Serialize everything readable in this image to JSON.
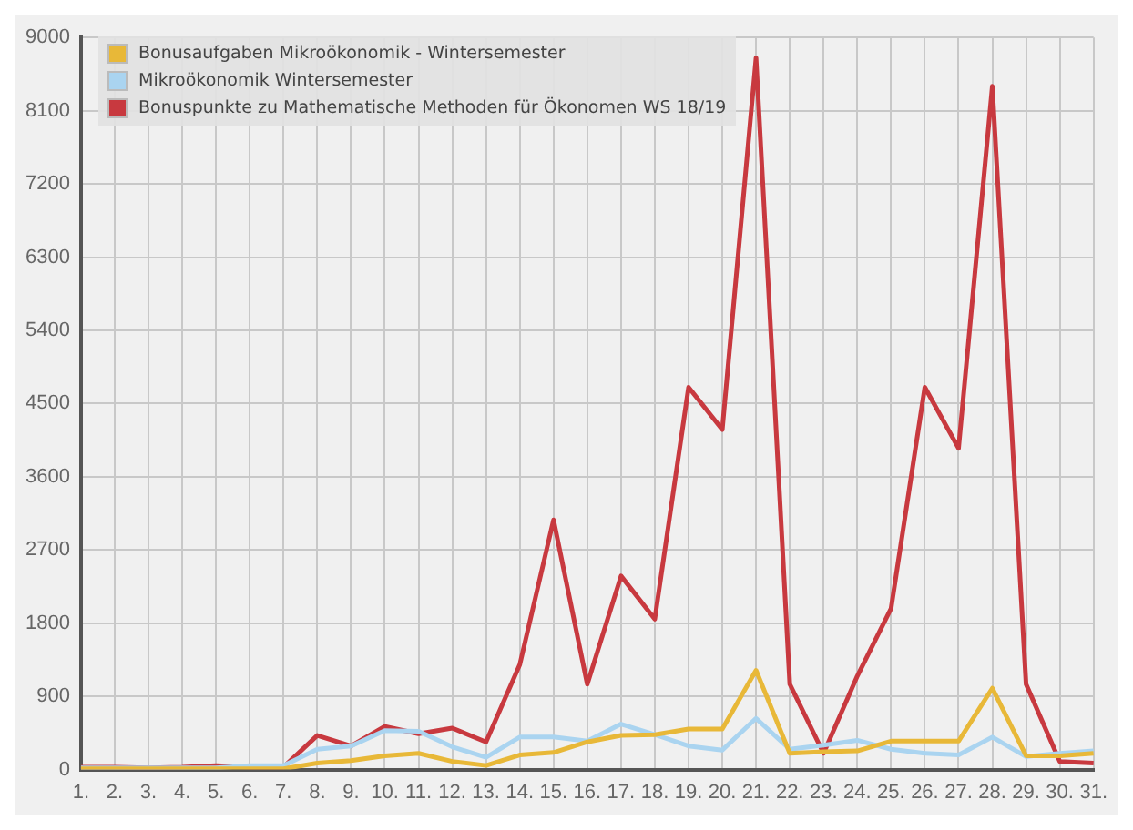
{
  "chart_data": {
    "type": "line",
    "categories": [
      "1.",
      "2.",
      "3.",
      "4.",
      "5.",
      "6.",
      "7.",
      "8.",
      "9.",
      "10.",
      "11.",
      "12.",
      "13.",
      "14.",
      "15.",
      "16.",
      "17.",
      "18.",
      "19.",
      "20.",
      "21.",
      "22.",
      "23.",
      "24.",
      "25.",
      "26.",
      "27.",
      "28.",
      "29.",
      "30.",
      "31."
    ],
    "series": [
      {
        "name": "Bonusaufgaben Mikroökonomik - Wintersemester",
        "color": "#e8b838",
        "values": [
          10,
          10,
          10,
          10,
          10,
          10,
          10,
          80,
          110,
          170,
          200,
          100,
          50,
          180,
          210,
          340,
          420,
          430,
          500,
          500,
          1220,
          200,
          220,
          230,
          350,
          350,
          350,
          1000,
          170,
          170,
          200
        ]
      },
      {
        "name": "Mikroökonomik Wintersemester",
        "color": "#aad4f0",
        "values": [
          20,
          20,
          20,
          20,
          20,
          50,
          50,
          250,
          290,
          480,
          470,
          280,
          150,
          400,
          400,
          350,
          560,
          430,
          290,
          240,
          630,
          250,
          300,
          360,
          250,
          200,
          180,
          400,
          160,
          200,
          230
        ]
      },
      {
        "name": "Bonuspunkte zu Mathematische Methoden für Ökonomen WS 18/19",
        "color": "#c8393f",
        "values": [
          30,
          30,
          20,
          30,
          50,
          30,
          30,
          420,
          290,
          530,
          440,
          510,
          340,
          1290,
          3070,
          1050,
          2380,
          1850,
          4700,
          4180,
          8750,
          1050,
          200,
          1150,
          1980,
          4700,
          3950,
          8400,
          1050,
          100,
          80
        ]
      }
    ],
    "ylim": [
      0,
      9000
    ],
    "yticks": [
      0,
      900,
      1800,
      2700,
      3600,
      4500,
      5400,
      6300,
      7200,
      8100,
      9000
    ],
    "grid": true,
    "legend": "top left",
    "marker": "none",
    "line_style": "solid"
  }
}
